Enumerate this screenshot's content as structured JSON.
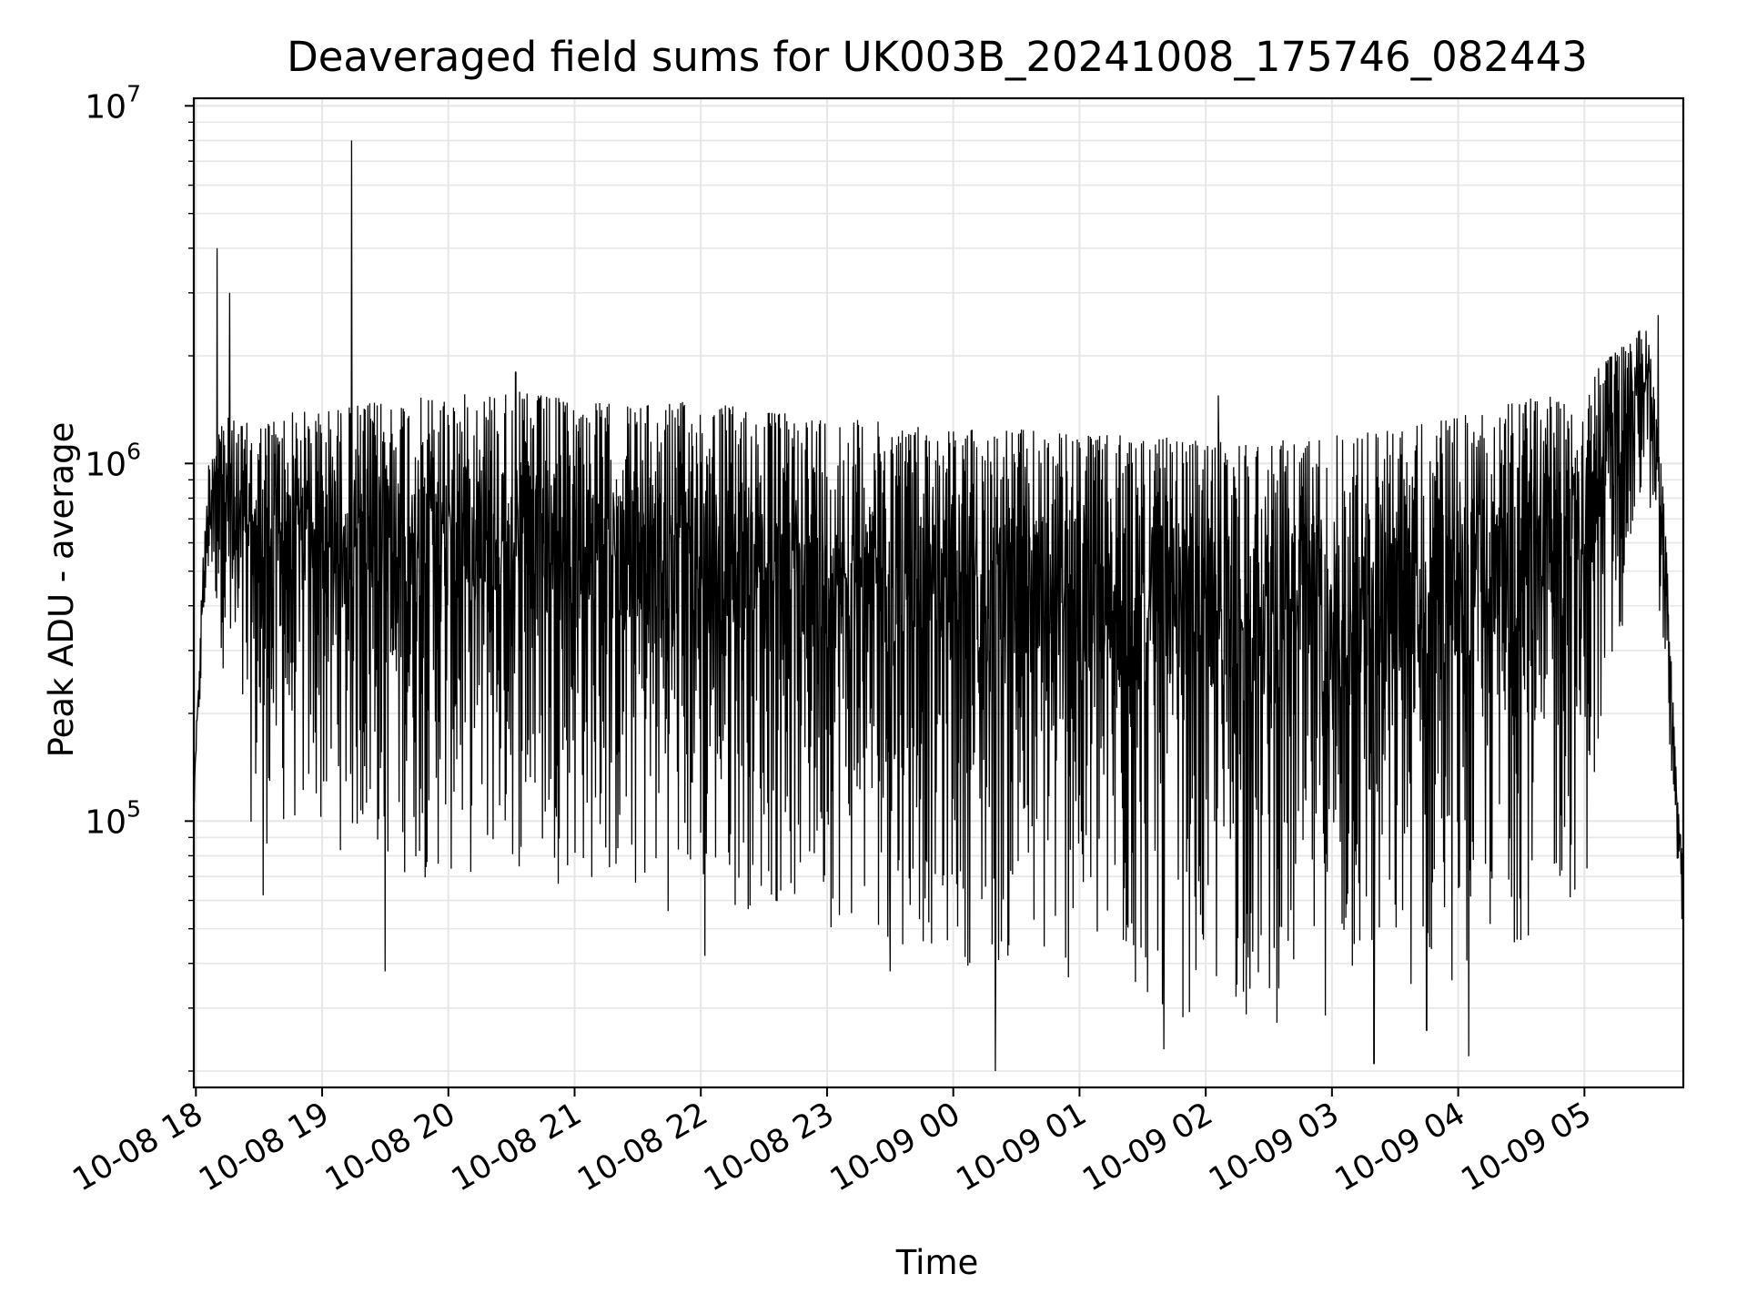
{
  "chart_data": {
    "type": "line",
    "title": "Deaveraged field sums for UK003B_20241008_175746_082443",
    "xlabel": "Time",
    "ylabel": "Peak ADU - average",
    "yscale": "log",
    "ylim": [
      18000,
      10500000
    ],
    "xlim": [
      "2024-10-08 17:59",
      "2024-10-09 05:47"
    ],
    "grid": true,
    "line_color": "#000000",
    "grid_color": "#e6e6e6",
    "x_ticks": [
      {
        "time": "2024-10-08 18:00",
        "label": "10-08 18"
      },
      {
        "time": "2024-10-08 19:00",
        "label": "10-08 19"
      },
      {
        "time": "2024-10-08 20:00",
        "label": "10-08 20"
      },
      {
        "time": "2024-10-08 21:00",
        "label": "10-08 21"
      },
      {
        "time": "2024-10-08 22:00",
        "label": "10-08 22"
      },
      {
        "time": "2024-10-08 23:00",
        "label": "10-08 23"
      },
      {
        "time": "2024-10-09 00:00",
        "label": "10-09 00"
      },
      {
        "time": "2024-10-09 01:00",
        "label": "10-09 01"
      },
      {
        "time": "2024-10-09 02:00",
        "label": "10-09 02"
      },
      {
        "time": "2024-10-09 03:00",
        "label": "10-09 03"
      },
      {
        "time": "2024-10-09 04:00",
        "label": "10-09 04"
      },
      {
        "time": "2024-10-09 05:00",
        "label": "10-09 05"
      }
    ],
    "y_ticks": [
      {
        "value": 100000,
        "base": "10",
        "exp": "5"
      },
      {
        "value": 1000000,
        "base": "10",
        "exp": "6"
      },
      {
        "value": 10000000,
        "base": "10",
        "exp": "7"
      }
    ],
    "series": [
      {
        "values_note": "",
        "envelope": [
          {
            "t": "2024-10-08 17:59",
            "low": 100000,
            "high": 120000
          },
          {
            "t": "2024-10-08 18:03",
            "low": 250000,
            "high": 500000
          },
          {
            "t": "2024-10-08 18:06",
            "low": 450000,
            "high": 1000000
          },
          {
            "t": "2024-10-08 18:10",
            "low": 350000,
            "high": 1400000
          },
          {
            "t": "2024-10-08 18:20",
            "low": 130000,
            "high": 1300000
          },
          {
            "t": "2024-10-08 18:30",
            "low": 80000,
            "high": 1300000
          },
          {
            "t": "2024-10-08 18:45",
            "low": 90000,
            "high": 1400000
          },
          {
            "t": "2024-10-08 19:00",
            "low": 85000,
            "high": 1400000
          },
          {
            "t": "2024-10-08 19:30",
            "low": 70000,
            "high": 1500000
          },
          {
            "t": "2024-10-08 20:00",
            "low": 65000,
            "high": 1550000
          },
          {
            "t": "2024-10-08 20:30",
            "low": 70000,
            "high": 1600000
          },
          {
            "t": "2024-10-08 21:00",
            "low": 65000,
            "high": 1500000
          },
          {
            "t": "2024-10-08 21:30",
            "low": 55000,
            "high": 1450000
          },
          {
            "t": "2024-10-08 22:00",
            "low": 55000,
            "high": 1500000
          },
          {
            "t": "2024-10-08 22:30",
            "low": 55000,
            "high": 1400000
          },
          {
            "t": "2024-10-08 23:00",
            "low": 50000,
            "high": 1350000
          },
          {
            "t": "2024-10-08 23:30",
            "low": 45000,
            "high": 1300000
          },
          {
            "t": "2024-10-09 00:00",
            "low": 40000,
            "high": 1250000
          },
          {
            "t": "2024-10-09 00:30",
            "low": 35000,
            "high": 1250000
          },
          {
            "t": "2024-10-09 01:00",
            "low": 32000,
            "high": 1200000
          },
          {
            "t": "2024-10-09 01:30",
            "low": 28000,
            "high": 1200000
          },
          {
            "t": "2024-10-09 02:00",
            "low": 27000,
            "high": 1150000
          },
          {
            "t": "2024-10-09 02:30",
            "low": 26000,
            "high": 1150000
          },
          {
            "t": "2024-10-09 03:00",
            "low": 28000,
            "high": 1200000
          },
          {
            "t": "2024-10-09 03:30",
            "low": 30000,
            "high": 1250000
          },
          {
            "t": "2024-10-09 04:00",
            "low": 35000,
            "high": 1350000
          },
          {
            "t": "2024-10-09 04:30",
            "low": 45000,
            "high": 1500000
          },
          {
            "t": "2024-10-09 05:00",
            "low": 60000,
            "high": 1700000
          },
          {
            "t": "2024-10-09 05:20",
            "low": 400000,
            "high": 2200000
          },
          {
            "t": "2024-10-09 05:30",
            "low": 900000,
            "high": 2500000
          },
          {
            "t": "2024-10-09 05:38",
            "low": 200000,
            "high": 800000
          },
          {
            "t": "2024-10-09 05:44",
            "low": 80000,
            "high": 120000
          },
          {
            "t": "2024-10-09 05:47",
            "low": 45000,
            "high": 80000
          }
        ],
        "spikes_high": [
          {
            "t": "2024-10-08 18:10",
            "value": 4000000
          },
          {
            "t": "2024-10-08 18:16",
            "value": 3000000
          },
          {
            "t": "2024-10-08 19:14",
            "value": 8000000
          },
          {
            "t": "2024-10-08 20:32",
            "value": 1800000
          },
          {
            "t": "2024-10-09 02:06",
            "value": 1550000
          },
          {
            "t": "2024-10-09 05:35",
            "value": 2600000
          }
        ],
        "spikes_low": [
          {
            "t": "2024-10-08 18:32",
            "value": 62000
          },
          {
            "t": "2024-10-08 19:30",
            "value": 38000
          },
          {
            "t": "2024-10-08 22:02",
            "value": 42000
          },
          {
            "t": "2024-10-08 23:30",
            "value": 38000
          },
          {
            "t": "2024-10-09 00:20",
            "value": 20000
          },
          {
            "t": "2024-10-09 01:40",
            "value": 23000
          },
          {
            "t": "2024-10-09 03:20",
            "value": 21000
          },
          {
            "t": "2024-10-09 03:45",
            "value": 26000
          },
          {
            "t": "2024-10-09 04:05",
            "value": 22000
          }
        ]
      }
    ]
  }
}
